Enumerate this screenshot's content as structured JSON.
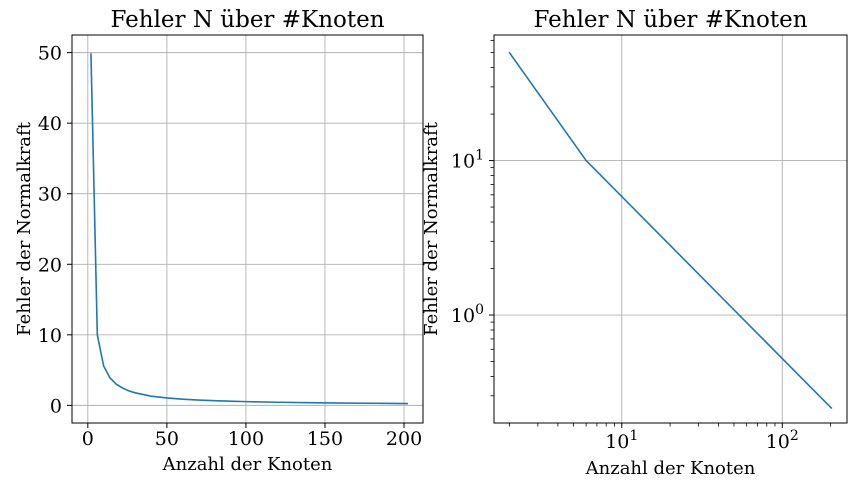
{
  "colors": {
    "series": "#1f77b4",
    "grid": "#b0b0b0",
    "frame": "#000000"
  },
  "chart_data": [
    {
      "type": "line",
      "title": "Fehler N über #Knoten",
      "xlabel": "Anzahl der Knoten",
      "ylabel": "Fehler der Normalkraft",
      "xscale": "linear",
      "yscale": "linear",
      "grid": true,
      "xlim": [
        -10,
        212
      ],
      "ylim": [
        -2.5,
        52.5
      ],
      "xticks": [
        0,
        50,
        100,
        150,
        200
      ],
      "xtick_labels": [
        "0",
        "50",
        "100",
        "150",
        "200"
      ],
      "yticks": [
        0,
        10,
        20,
        30,
        40,
        50
      ],
      "ytick_labels": [
        "0",
        "10",
        "20",
        "30",
        "40",
        "50"
      ],
      "series": [
        {
          "x": [
            2,
            6,
            10,
            14,
            18,
            22,
            26,
            30,
            40,
            50,
            60,
            70,
            80,
            90,
            100,
            120,
            140,
            160,
            180,
            202
          ],
          "y": [
            49.8,
            10,
            5.6,
            3.9,
            3.0,
            2.45,
            2.05,
            1.78,
            1.3,
            1.05,
            0.87,
            0.75,
            0.66,
            0.59,
            0.53,
            0.44,
            0.38,
            0.33,
            0.3,
            0.25
          ]
        }
      ]
    },
    {
      "type": "line",
      "title": "Fehler N über #Knoten",
      "xlabel": "Anzahl der Knoten",
      "ylabel": "Fehler der Normalkraft",
      "xscale": "log",
      "yscale": "log",
      "grid": true,
      "xlim": [
        1.6,
        253
      ],
      "ylim": [
        0.2,
        65
      ],
      "xticks": [
        10,
        100
      ],
      "xtick_labels": [
        {
          "base": "10",
          "exp": "1"
        },
        {
          "base": "10",
          "exp": "2"
        }
      ],
      "yticks": [
        1,
        10
      ],
      "ytick_labels": [
        {
          "base": "10",
          "exp": "0"
        },
        {
          "base": "10",
          "exp": "1"
        }
      ],
      "series": [
        {
          "x": [
            2,
            6,
            202
          ],
          "y": [
            49.8,
            10,
            0.25
          ]
        }
      ]
    }
  ]
}
